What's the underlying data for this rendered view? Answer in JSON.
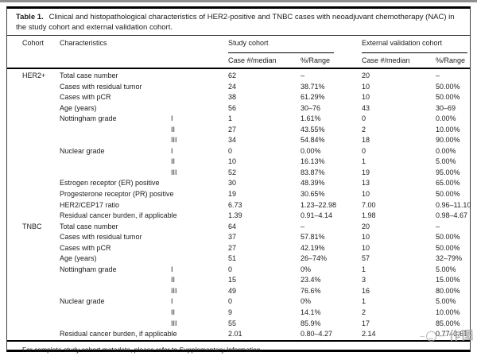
{
  "table": {
    "caption_label": "Table 1.",
    "caption_text": "Clinical and histopathological characteristics of HER2-positive and TNBC cases with neoadjuvant chemotherapy (NAC) in the study cohort and external validation cohort.",
    "headers": {
      "cohort": "Cohort",
      "characteristics": "Characteristics",
      "study_group": "Study cohort",
      "validation_group": "External validation cohort",
      "case_median": "Case #/median",
      "pct_range": "%/Range"
    },
    "rows": [
      {
        "cohort": "HER2+",
        "characteristic": "Total case number",
        "grade": "",
        "study_case": "62",
        "study_range": "–",
        "ev_case": "20",
        "ev_range": "–"
      },
      {
        "cohort": "",
        "characteristic": "Cases with residual tumor",
        "grade": "",
        "study_case": "24",
        "study_range": "38.71%",
        "ev_case": "10",
        "ev_range": "50.00%"
      },
      {
        "cohort": "",
        "characteristic": "Cases with pCR",
        "grade": "",
        "study_case": "38",
        "study_range": "61.29%",
        "ev_case": "10",
        "ev_range": "50.00%"
      },
      {
        "cohort": "",
        "characteristic": "Age (years)",
        "grade": "",
        "study_case": "56",
        "study_range": "30–76",
        "ev_case": "43",
        "ev_range": "30–69"
      },
      {
        "cohort": "",
        "characteristic": "Nottingham grade",
        "grade": "I",
        "study_case": "1",
        "study_range": "1.61%",
        "ev_case": "0",
        "ev_range": "0.00%"
      },
      {
        "cohort": "",
        "characteristic": "",
        "grade": "II",
        "study_case": "27",
        "study_range": "43.55%",
        "ev_case": "2",
        "ev_range": "10.00%"
      },
      {
        "cohort": "",
        "characteristic": "",
        "grade": "III",
        "study_case": "34",
        "study_range": "54.84%",
        "ev_case": "18",
        "ev_range": "90.00%"
      },
      {
        "cohort": "",
        "characteristic": "Nuclear grade",
        "grade": "I",
        "study_case": "0",
        "study_range": "0.00%",
        "ev_case": "0",
        "ev_range": "0.00%"
      },
      {
        "cohort": "",
        "characteristic": "",
        "grade": "II",
        "study_case": "10",
        "study_range": "16.13%",
        "ev_case": "1",
        "ev_range": "5.00%"
      },
      {
        "cohort": "",
        "characteristic": "",
        "grade": "III",
        "study_case": "52",
        "study_range": "83.87%",
        "ev_case": "19",
        "ev_range": "95.00%"
      },
      {
        "cohort": "",
        "characteristic": "Estrogen receptor (ER) positive",
        "grade": "",
        "study_case": "30",
        "study_range": "48.39%",
        "ev_case": "13",
        "ev_range": "65.00%"
      },
      {
        "cohort": "",
        "characteristic": "Progesterone receptor (PR) positive",
        "grade": "",
        "study_case": "19",
        "study_range": "30.65%",
        "ev_case": "10",
        "ev_range": "50.00%"
      },
      {
        "cohort": "",
        "characteristic": "HER2/CEP17 ratio",
        "grade": "",
        "study_case": "6.73",
        "study_range": "1.23–22.98",
        "ev_case": "7.00",
        "ev_range": "0.96–11.10"
      },
      {
        "cohort": "",
        "characteristic": "Residual cancer burden, if applicable",
        "grade": "",
        "study_case": "1.39",
        "study_range": "0.91–4.14",
        "ev_case": "1.98",
        "ev_range": "0.98–4.67"
      },
      {
        "cohort": "TNBC",
        "characteristic": "Total case number",
        "grade": "",
        "study_case": "64",
        "study_range": "–",
        "ev_case": "20",
        "ev_range": "–"
      },
      {
        "cohort": "",
        "characteristic": "Cases with residual tumor",
        "grade": "",
        "study_case": "37",
        "study_range": "57.81%",
        "ev_case": "10",
        "ev_range": "50.00%"
      },
      {
        "cohort": "",
        "characteristic": "Cases with pCR",
        "grade": "",
        "study_case": "27",
        "study_range": "42.19%",
        "ev_case": "10",
        "ev_range": "50.00%"
      },
      {
        "cohort": "",
        "characteristic": "Age (years)",
        "grade": "",
        "study_case": "51",
        "study_range": "26–74%",
        "ev_case": "57",
        "ev_range": "32–79%"
      },
      {
        "cohort": "",
        "characteristic": "Nottingham grade",
        "grade": "I",
        "study_case": "0",
        "study_range": "0%",
        "ev_case": "1",
        "ev_range": "5.00%"
      },
      {
        "cohort": "",
        "characteristic": "",
        "grade": "II",
        "study_case": "15",
        "study_range": "23.4%",
        "ev_case": "3",
        "ev_range": "15.00%"
      },
      {
        "cohort": "",
        "characteristic": "",
        "grade": "III",
        "study_case": "49",
        "study_range": "76.6%",
        "ev_case": "16",
        "ev_range": "80.00%"
      },
      {
        "cohort": "",
        "characteristic": "Nuclear grade",
        "grade": "I",
        "study_case": "0",
        "study_range": "0%",
        "ev_case": "1",
        "ev_range": "5.00%"
      },
      {
        "cohort": "",
        "characteristic": "",
        "grade": "II",
        "study_case": "9",
        "study_range": "14.1%",
        "ev_case": "2",
        "ev_range": "10.00%"
      },
      {
        "cohort": "",
        "characteristic": "",
        "grade": "III",
        "study_case": "55",
        "study_range": "85.9%",
        "ev_case": "17",
        "ev_range": "85.00%"
      },
      {
        "cohort": "",
        "characteristic": "Residual cancer burden, if applicable",
        "grade": "",
        "study_case": "2.01",
        "study_range": "0.80–4.27",
        "ev_case": "2.14",
        "ev_range": "0.77–3.61"
      }
    ],
    "footnote": "For complete study cohort metadata, please refer to Supplementary Information."
  },
  "watermark": {
    "text": "作图"
  },
  "colors": {
    "rule": "#000000",
    "text": "#1c1c1c",
    "top_strip": "#8f8f8f",
    "watermark": "#a8a8a8"
  }
}
